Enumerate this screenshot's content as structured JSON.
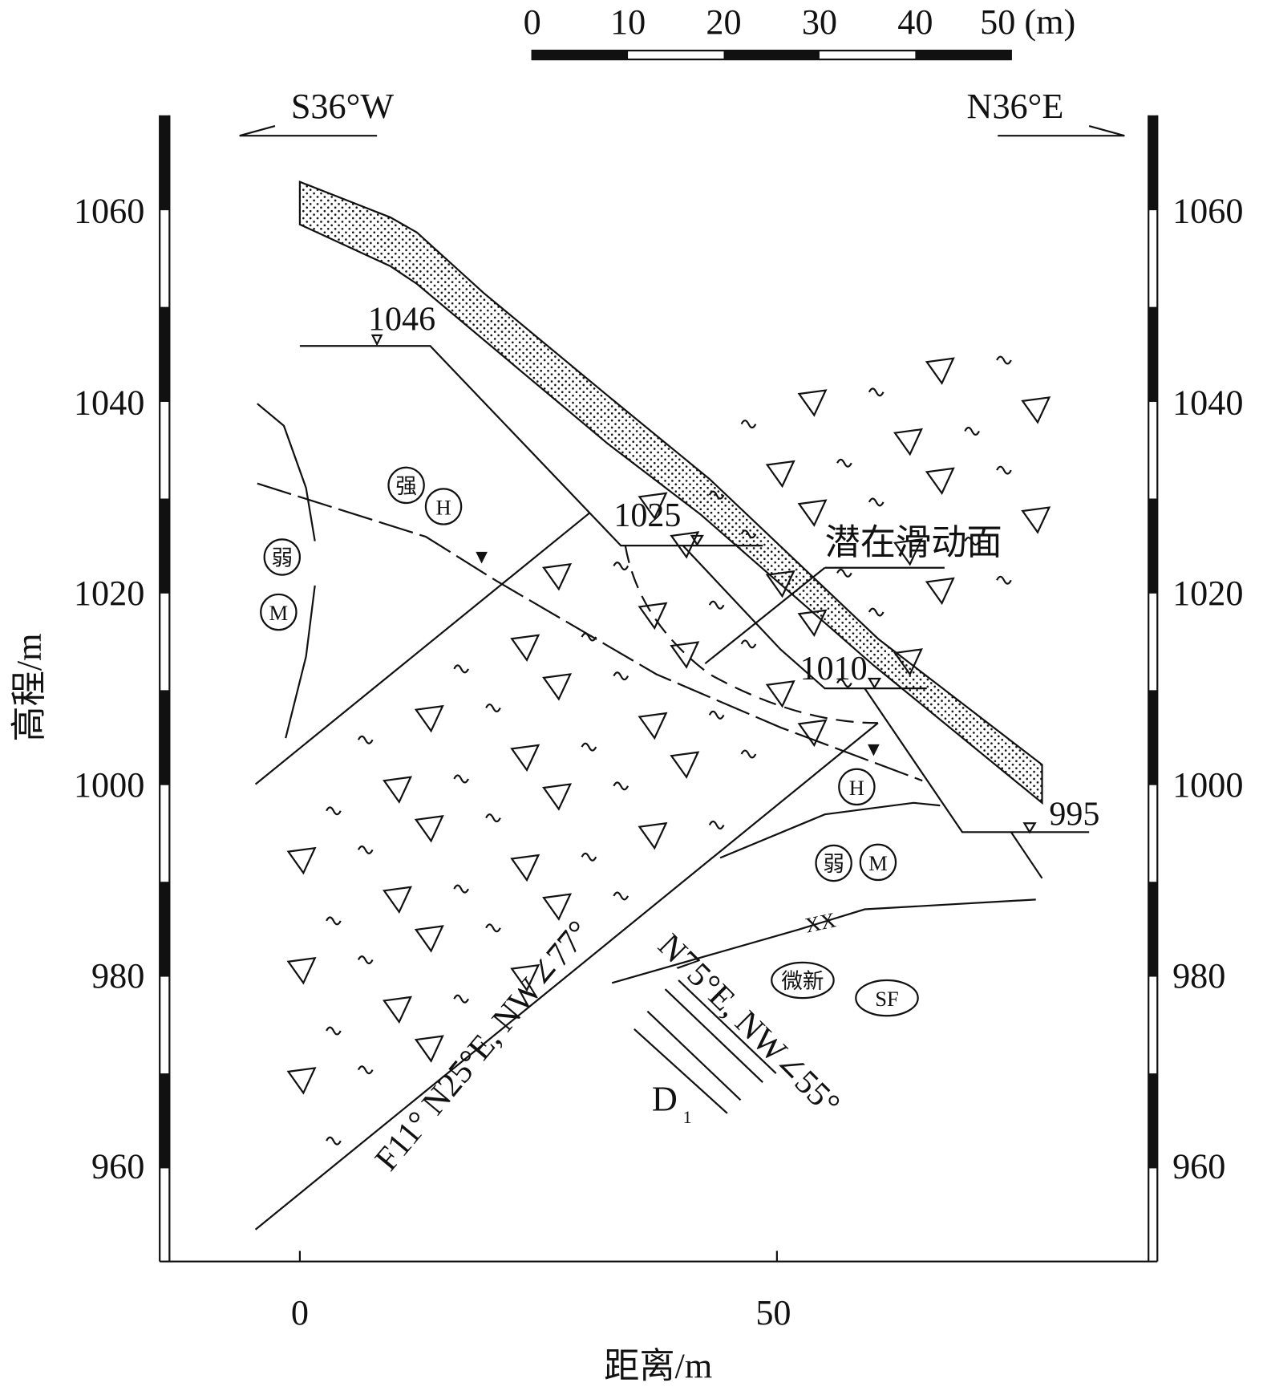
{
  "scale_bar": {
    "labels": [
      "0",
      "10",
      "20",
      "30",
      "40",
      "50 (m)"
    ]
  },
  "directions": {
    "left": "S36°W",
    "right": "N36°E"
  },
  "axes": {
    "left": {
      "title": "高程/m",
      "ticks": [
        "1060",
        "1040",
        "1020",
        "1000",
        "980",
        "960"
      ]
    },
    "right": {
      "ticks": [
        "1060",
        "1040",
        "1020",
        "1000",
        "980",
        "960"
      ]
    },
    "bottom": {
      "title": "距离/m",
      "ticks": [
        "0",
        "50"
      ]
    }
  },
  "water_levels": [
    "1046",
    "1025",
    "1010",
    "995"
  ],
  "annotation": "潜在滑动面",
  "zones": {
    "strong": "强",
    "h1": "H",
    "weak1": "弱",
    "m1": "M",
    "h2": "H",
    "weak2": "弱",
    "m2": "M",
    "xx": "XX",
    "fresh": "微新",
    "sf": "SF"
  },
  "faults": {
    "f11": "F11° N25°E, NW∠77°",
    "n75": "N75°E, NW∠55°",
    "stratum": "D",
    "stratum_sub": "1"
  }
}
